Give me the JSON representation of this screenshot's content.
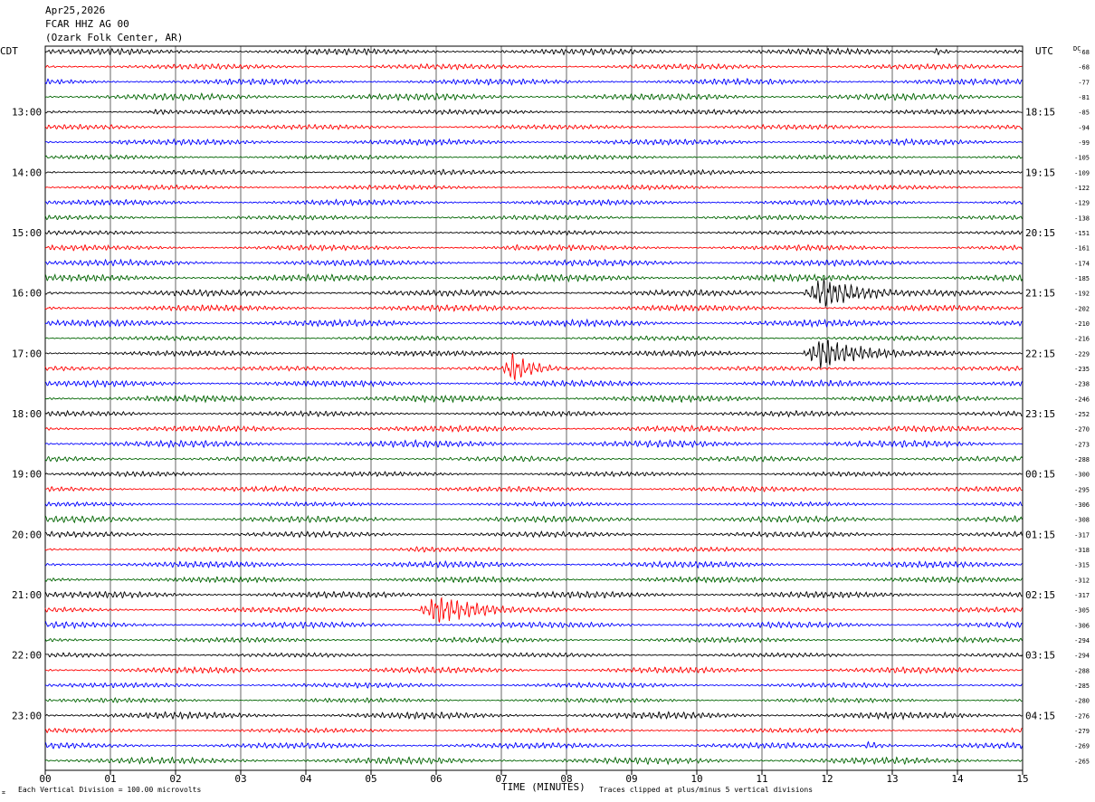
{
  "header": {
    "date": "Apr25,2026",
    "station": "FCAR HHZ AG 00",
    "location": "(Ozark Folk Center, AR)"
  },
  "labels": {
    "left_tz": "CDT",
    "right_tz": "UTC",
    "dc": "DC",
    "xlabel": "TIME (MINUTES)",
    "scale_note": "Each Vertical Division =  100.00 microvolts",
    "clip_note": "Traces clipped at plus/minus 5 vertical divisions"
  },
  "colors": {
    "trace_cycle": [
      "#000000",
      "#ff0000",
      "#0000ff",
      "#006400"
    ],
    "grid": "#000000"
  },
  "chart_data": {
    "type": "line",
    "title": "",
    "xlabel": "TIME (MINUTES)",
    "x_ticks": [
      "00",
      "01",
      "02",
      "03",
      "04",
      "05",
      "06",
      "07",
      "08",
      "09",
      "10",
      "11",
      "12",
      "13",
      "14",
      "15"
    ],
    "xlim": [
      0,
      15
    ],
    "num_traces": 48,
    "trace_minutes": 15,
    "left_time_labels": [
      {
        "trace": 4,
        "label": "13:00"
      },
      {
        "trace": 8,
        "label": "14:00"
      },
      {
        "trace": 12,
        "label": "15:00"
      },
      {
        "trace": 16,
        "label": "16:00"
      },
      {
        "trace": 20,
        "label": "17:00"
      },
      {
        "trace": 24,
        "label": "18:00"
      },
      {
        "trace": 28,
        "label": "19:00"
      },
      {
        "trace": 32,
        "label": "20:00"
      },
      {
        "trace": 36,
        "label": "21:00"
      },
      {
        "trace": 40,
        "label": "22:00"
      },
      {
        "trace": 44,
        "label": "23:00"
      }
    ],
    "right_time_labels": [
      {
        "trace": 4,
        "label": "18:15"
      },
      {
        "trace": 8,
        "label": "19:15"
      },
      {
        "trace": 12,
        "label": "20:15"
      },
      {
        "trace": 16,
        "label": "21:15"
      },
      {
        "trace": 20,
        "label": "22:15"
      },
      {
        "trace": 24,
        "label": "23:15"
      },
      {
        "trace": 28,
        "label": "00:15"
      },
      {
        "trace": 32,
        "label": "01:15"
      },
      {
        "trace": 36,
        "label": "02:15"
      },
      {
        "trace": 40,
        "label": "03:15"
      },
      {
        "trace": 44,
        "label": "04:15"
      }
    ],
    "dc_offsets": [
      "-68",
      "-68",
      "-77",
      "-81",
      "-85",
      "-94",
      "-99",
      "-105",
      "-109",
      "-122",
      "-129",
      "-138",
      "-151",
      "-161",
      "-174",
      "-185",
      "-192",
      "-202",
      "-210",
      "-216",
      "-229",
      "-235",
      "-238",
      "-246",
      "-252",
      "-270",
      "-273",
      "-288",
      "-300",
      "-295",
      "-306",
      "-308",
      "-317",
      "-318",
      "-315",
      "-312",
      "-317",
      "-305",
      "-306",
      "-294",
      "-294",
      "-288",
      "-285",
      "-280",
      "-276",
      "-279",
      "-269",
      "-265"
    ],
    "events": [
      {
        "trace": 0,
        "start_min": 13.6,
        "end_min": 14.2,
        "peak_divisions": 1.2
      },
      {
        "trace": 4,
        "start_min": 1.5,
        "end_min": 3.0,
        "peak_divisions": 1.0
      },
      {
        "trace": 6,
        "start_min": 1.0,
        "end_min": 2.2,
        "peak_divisions": 0.9
      },
      {
        "trace": 13,
        "start_min": 7.0,
        "end_min": 8.2,
        "peak_divisions": 1.0
      },
      {
        "trace": 16,
        "start_min": 11.6,
        "end_min": 13.8,
        "peak_divisions": 5.0
      },
      {
        "trace": 20,
        "start_min": 11.6,
        "end_min": 13.8,
        "peak_divisions": 5.0
      },
      {
        "trace": 21,
        "start_min": 7.0,
        "end_min": 8.1,
        "peak_divisions": 5.0
      },
      {
        "trace": 33,
        "start_min": 5.4,
        "end_min": 7.8,
        "peak_divisions": 1.0
      },
      {
        "trace": 37,
        "start_min": 5.7,
        "end_min": 7.8,
        "peak_divisions": 5.0
      },
      {
        "trace": 46,
        "start_min": 12.5,
        "end_min": 13.4,
        "peak_divisions": 1.3
      }
    ]
  }
}
